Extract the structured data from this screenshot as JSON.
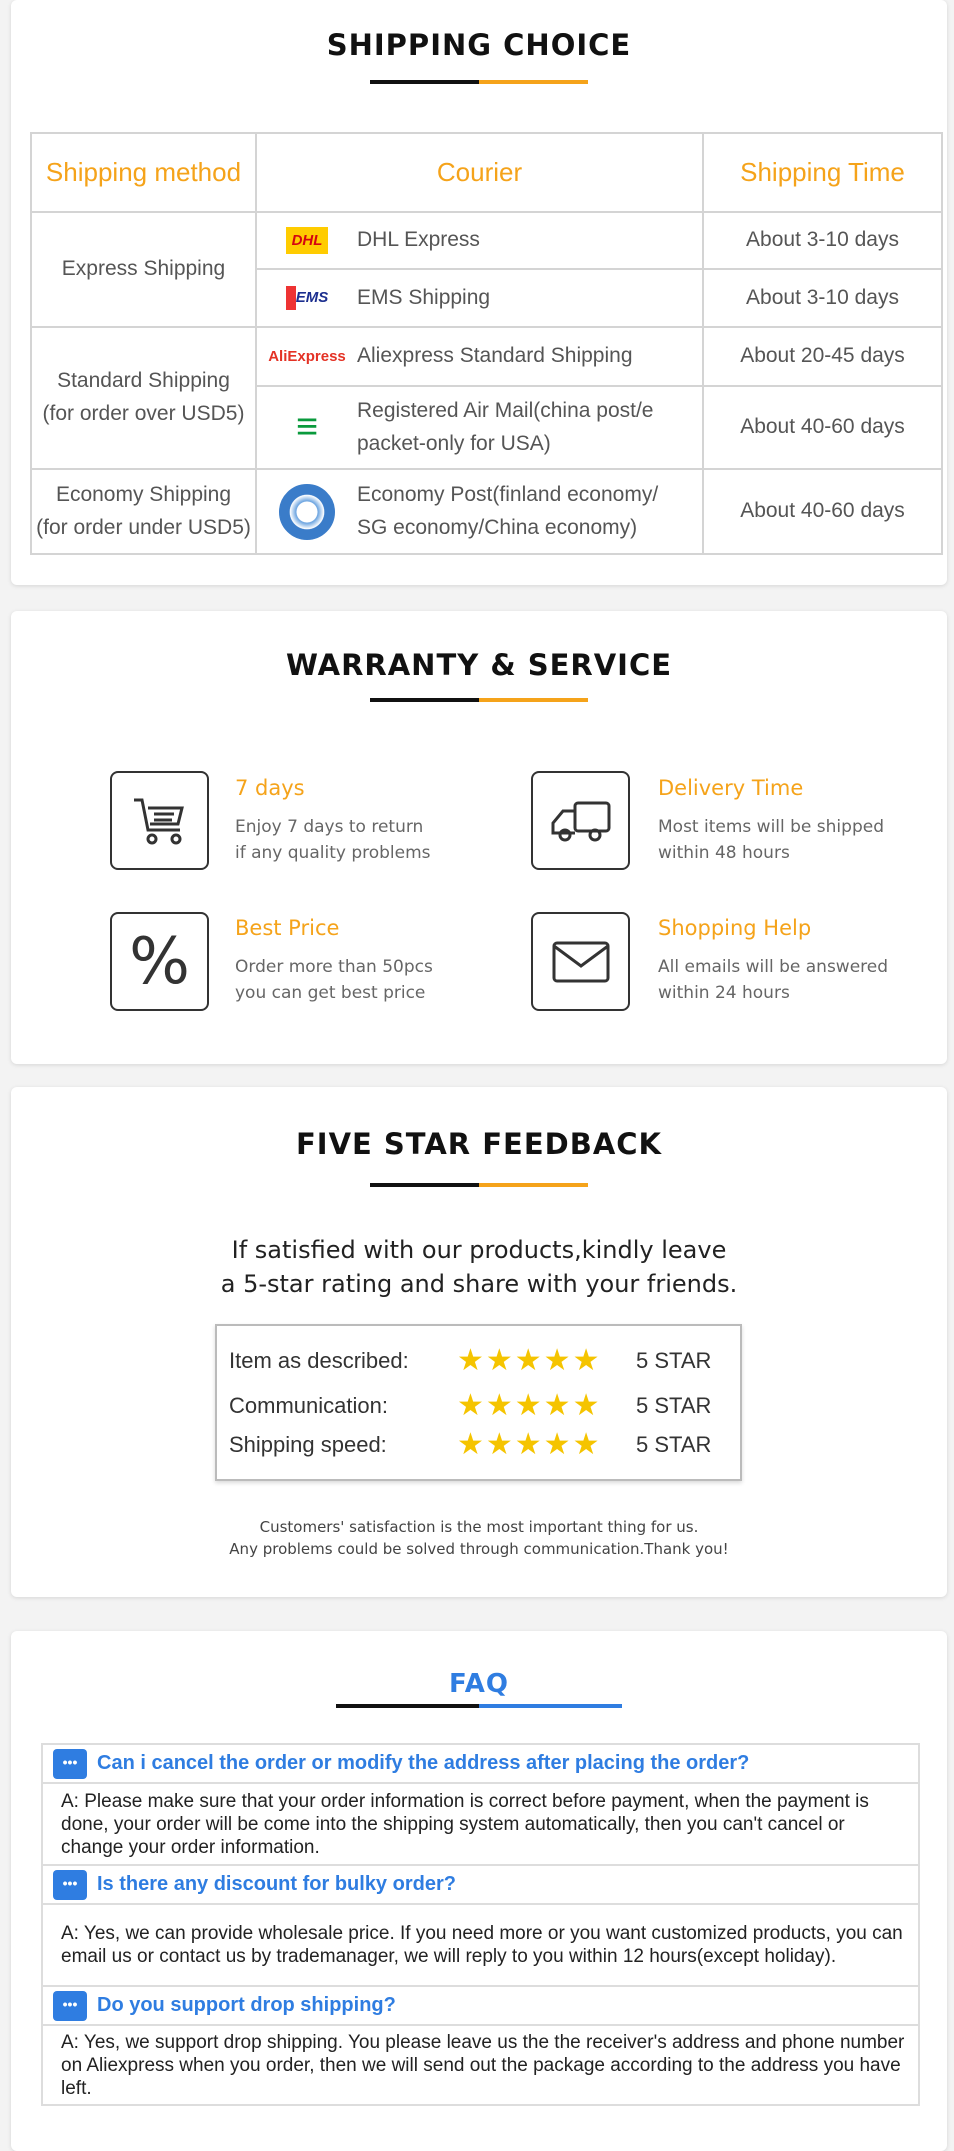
{
  "shipping": {
    "title": "SHIPPING CHOICE",
    "headers": [
      "Shipping method",
      "Courier",
      "Shipping Time"
    ],
    "groups": [
      {
        "method": [
          "Express Shipping"
        ],
        "rows": [
          {
            "logo": "DHL",
            "courier": "DHL Express",
            "time": "About 3-10 days"
          },
          {
            "logo": "EMS",
            "courier": "EMS Shipping",
            "time": "About 3-10 days"
          }
        ]
      },
      {
        "method": [
          "Standard Shipping",
          "(for order over USD5)"
        ],
        "rows": [
          {
            "logo": "AliExpress",
            "courier": "Aliexpress Standard Shipping",
            "time": "About 20-45 days"
          },
          {
            "logo": "china-post",
            "courier": [
              "Registered Air Mail(china post/e",
              "packet-only for USA)"
            ],
            "time": "About 40-60 days"
          }
        ]
      },
      {
        "method": [
          "Economy Shipping",
          "(for order under USD5)"
        ],
        "rows": [
          {
            "logo": "un-emblem",
            "courier": [
              "Economy Post(finland economy/",
              "SG economy/China economy)"
            ],
            "time": "About 40-60 days"
          }
        ]
      }
    ]
  },
  "warranty": {
    "title": "WARRANTY & SERVICE",
    "items": [
      {
        "icon": "cart-icon",
        "heading": "7 days",
        "lines": [
          "Enjoy 7 days to return",
          "if any quality problems"
        ]
      },
      {
        "icon": "truck-icon",
        "heading": "Delivery Time",
        "lines": [
          "Most items will be shipped",
          "within 48 hours"
        ]
      },
      {
        "icon": "percent-icon",
        "heading": "Best Price",
        "lines": [
          "Order more than 50pcs",
          "you can get best price"
        ]
      },
      {
        "icon": "envelope-icon",
        "heading": "Shopping Help",
        "lines": [
          "All emails will be answered",
          "within 24 hours"
        ]
      }
    ]
  },
  "feedback": {
    "title": "FIVE STAR FEEDBACK",
    "intro": [
      "If satisfied with our products,kindly leave",
      "a 5-star rating and share with your friends."
    ],
    "ratings": [
      {
        "label": "Item as described:",
        "stars": 5,
        "value": "5 STAR"
      },
      {
        "label": "Communication:",
        "stars": 5,
        "value": "5 STAR"
      },
      {
        "label": "Shipping speed:",
        "stars": 5,
        "value": "5 STAR"
      }
    ],
    "footer": [
      "Customers' satisfaction is the most important thing for us.",
      "Any problems could be solved through communication.Thank you!"
    ]
  },
  "faq": {
    "title": "FAQ",
    "items": [
      {
        "q": "Can i cancel the order or modify the address after placing the order?",
        "a": "A: Please make sure that your order information is correct before payment, when the payment is done, your order will be come into the shipping system automatically, then you can't cancel or change your order information."
      },
      {
        "q": "Is there any discount for bulky order?",
        "a": "A: Yes, we can provide wholesale price. If you need more or you want customized products, you can email us or contact us by trademanager, we will reply to you within 12 hours(except holiday)."
      },
      {
        "q": "Do you support drop shipping?",
        "a": "A: Yes, we support drop shipping. You please leave us the the receiver's address and phone number on Aliexpress when you order, then we will send out the package according to the address you have left."
      }
    ]
  },
  "colors": {
    "orange": "#f5a31a",
    "blue": "#2f7de1",
    "star": "#f5c400"
  }
}
